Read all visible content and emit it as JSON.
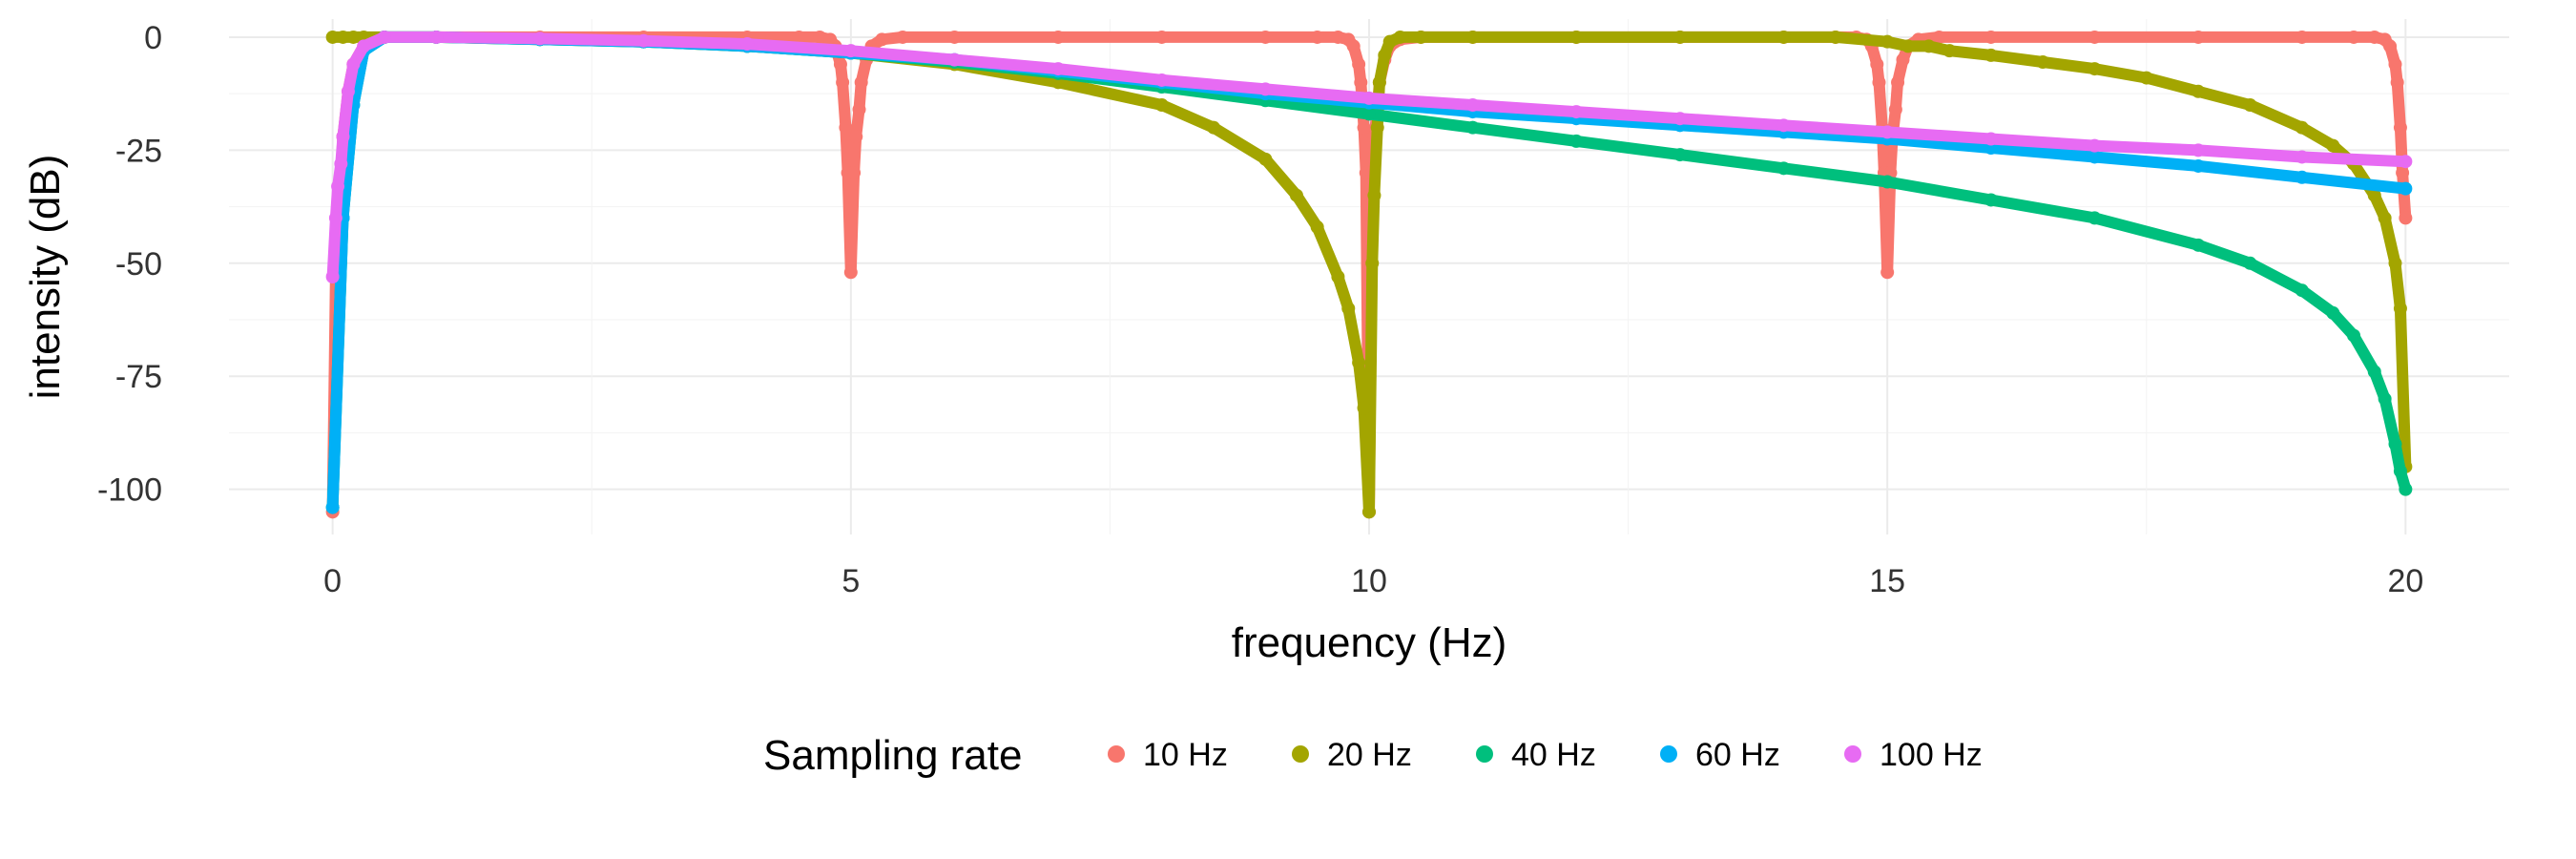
{
  "chart_data": {
    "type": "scatter",
    "title": "",
    "xlabel": "frequency (Hz)",
    "ylabel": "intensity (dB)",
    "xlim": [
      -1,
      21
    ],
    "ylim": [
      -110,
      4
    ],
    "xticks": [
      0,
      5,
      10,
      15,
      20
    ],
    "yticks": [
      0,
      -25,
      -50,
      -75,
      -100
    ],
    "xtick_labels": [
      "0",
      "5",
      "10",
      "15",
      "20"
    ],
    "ytick_labels": [
      "0",
      "-25",
      "-50",
      "-75",
      "-100"
    ],
    "grid": true,
    "legend": {
      "title": "Sampling rate",
      "position": "bottom"
    },
    "series": [
      {
        "name": "10 Hz",
        "color": "#F8766D",
        "x": [
          0.0,
          0.03,
          0.05,
          0.08,
          0.1,
          0.15,
          0.2,
          0.3,
          0.5,
          1,
          2,
          3,
          4,
          4.5,
          4.7,
          4.8,
          4.85,
          4.9,
          4.92,
          4.95,
          4.97,
          5.0,
          5.03,
          5.05,
          5.08,
          5.1,
          5.15,
          5.2,
          5.3,
          5.5,
          6,
          7,
          8,
          9,
          9.5,
          9.7,
          9.8,
          9.85,
          9.9,
          9.92,
          9.95,
          9.97,
          10.0,
          10.03,
          10.05,
          10.08,
          10.1,
          10.15,
          10.2,
          10.3,
          10.5,
          11,
          12,
          13,
          14,
          14.5,
          14.7,
          14.8,
          14.85,
          14.9,
          14.92,
          14.95,
          14.97,
          15.0,
          15.03,
          15.05,
          15.08,
          15.1,
          15.15,
          15.2,
          15.3,
          15.5,
          16,
          17,
          18,
          19,
          19.5,
          19.7,
          19.8,
          19.85,
          19.9,
          19.92,
          19.95,
          19.97,
          20.0
        ],
        "y": [
          -105,
          -52,
          -40,
          -30,
          -22,
          -12,
          -6,
          -2,
          0,
          0,
          0,
          0,
          0,
          0,
          0,
          -0.5,
          -2,
          -6,
          -10,
          -20,
          -30,
          -52,
          -30,
          -22,
          -16,
          -10,
          -5,
          -2,
          -0.5,
          0,
          0,
          0,
          0,
          0,
          0,
          0,
          -0.5,
          -2,
          -6,
          -10,
          -20,
          -30,
          -105,
          -30,
          -22,
          -16,
          -10,
          -5,
          -2,
          -0.5,
          0,
          0,
          0,
          0,
          0,
          0,
          0,
          -0.5,
          -2,
          -6,
          -10,
          -20,
          -30,
          -52,
          -30,
          -22,
          -16,
          -10,
          -5,
          -2,
          -0.5,
          0,
          0,
          0,
          0,
          0,
          0,
          0,
          -0.5,
          -2,
          -6,
          -10,
          -20,
          -30,
          -40
        ]
      },
      {
        "name": "20 Hz",
        "color": "#A3A500",
        "x": [
          0.0,
          0.1,
          0.2,
          0.3,
          0.5,
          1,
          2,
          3,
          4,
          5,
          6,
          7,
          8,
          8.5,
          9,
          9.3,
          9.5,
          9.7,
          9.8,
          9.9,
          9.95,
          10.0,
          10.03,
          10.05,
          10.08,
          10.1,
          10.15,
          10.2,
          10.3,
          10.5,
          11,
          12,
          13,
          14,
          14.5,
          15,
          15.2,
          15.4,
          15.6,
          16,
          16.5,
          17,
          17.5,
          18,
          18.5,
          19,
          19.3,
          19.5,
          19.7,
          19.8,
          19.9,
          19.95,
          20.0
        ],
        "y": [
          0,
          0,
          0,
          0,
          0,
          0,
          -0.5,
          -1,
          -2,
          -3.5,
          -6,
          -10,
          -15,
          -20,
          -27,
          -35,
          -42,
          -53,
          -60,
          -72,
          -82,
          -105,
          -50,
          -35,
          -20,
          -10,
          -4,
          -1,
          0,
          0,
          0,
          0,
          0,
          0,
          0,
          -1,
          -2,
          -2,
          -3,
          -4,
          -5.5,
          -7,
          -9,
          -12,
          -15,
          -20,
          -24,
          -28,
          -35,
          -40,
          -50,
          -60,
          -95
        ]
      },
      {
        "name": "40 Hz",
        "color": "#00BF7D",
        "x": [
          0.0,
          0.1,
          0.2,
          0.3,
          0.5,
          1,
          2,
          3,
          4,
          5,
          6,
          7,
          8,
          9,
          10,
          11,
          12,
          13,
          14,
          15,
          16,
          17,
          18,
          18.5,
          19,
          19.3,
          19.5,
          19.7,
          19.8,
          19.9,
          19.95,
          20.0
        ],
        "y": [
          -104,
          -40,
          -15,
          -3,
          0,
          0,
          -0.5,
          -1,
          -2,
          -3.5,
          -5.5,
          -8,
          -11,
          -14,
          -17,
          -20,
          -23,
          -26,
          -29,
          -32,
          -36,
          -40,
          -46,
          -50,
          -56,
          -61,
          -66,
          -74,
          -80,
          -90,
          -96,
          -100
        ]
      },
      {
        "name": "60 Hz",
        "color": "#00B0F6",
        "x": [
          0.0,
          0.1,
          0.2,
          0.3,
          0.5,
          1,
          2,
          3,
          4,
          5,
          6,
          7,
          8,
          9,
          10,
          11,
          12,
          13,
          14,
          15,
          16,
          17,
          18,
          19,
          20
        ],
        "y": [
          -104,
          -40,
          -15,
          -3,
          0,
          0,
          -0.5,
          -1,
          -2,
          -3.5,
          -5,
          -7.5,
          -10,
          -12.5,
          -14.5,
          -16.5,
          -18,
          -19.5,
          -21,
          -22.5,
          -24.5,
          -26.5,
          -28.5,
          -31,
          -33.5
        ]
      },
      {
        "name": "100 Hz",
        "color": "#E76BF3",
        "x": [
          0.0,
          0.03,
          0.05,
          0.08,
          0.1,
          0.15,
          0.2,
          0.3,
          0.5,
          1,
          2,
          3,
          4,
          5,
          6,
          7,
          8,
          9,
          10,
          11,
          12,
          13,
          14,
          15,
          16,
          17,
          18,
          19,
          20
        ],
        "y": [
          -53,
          -40,
          -33,
          -28,
          -22,
          -12,
          -6,
          -2,
          0,
          0,
          -0.3,
          -0.8,
          -1.5,
          -3,
          -5,
          -7,
          -9.5,
          -11.5,
          -13.5,
          -15,
          -16.5,
          -18,
          -19.5,
          -21,
          -22.5,
          -24,
          -25,
          -26.5,
          -27.5
        ]
      }
    ]
  }
}
